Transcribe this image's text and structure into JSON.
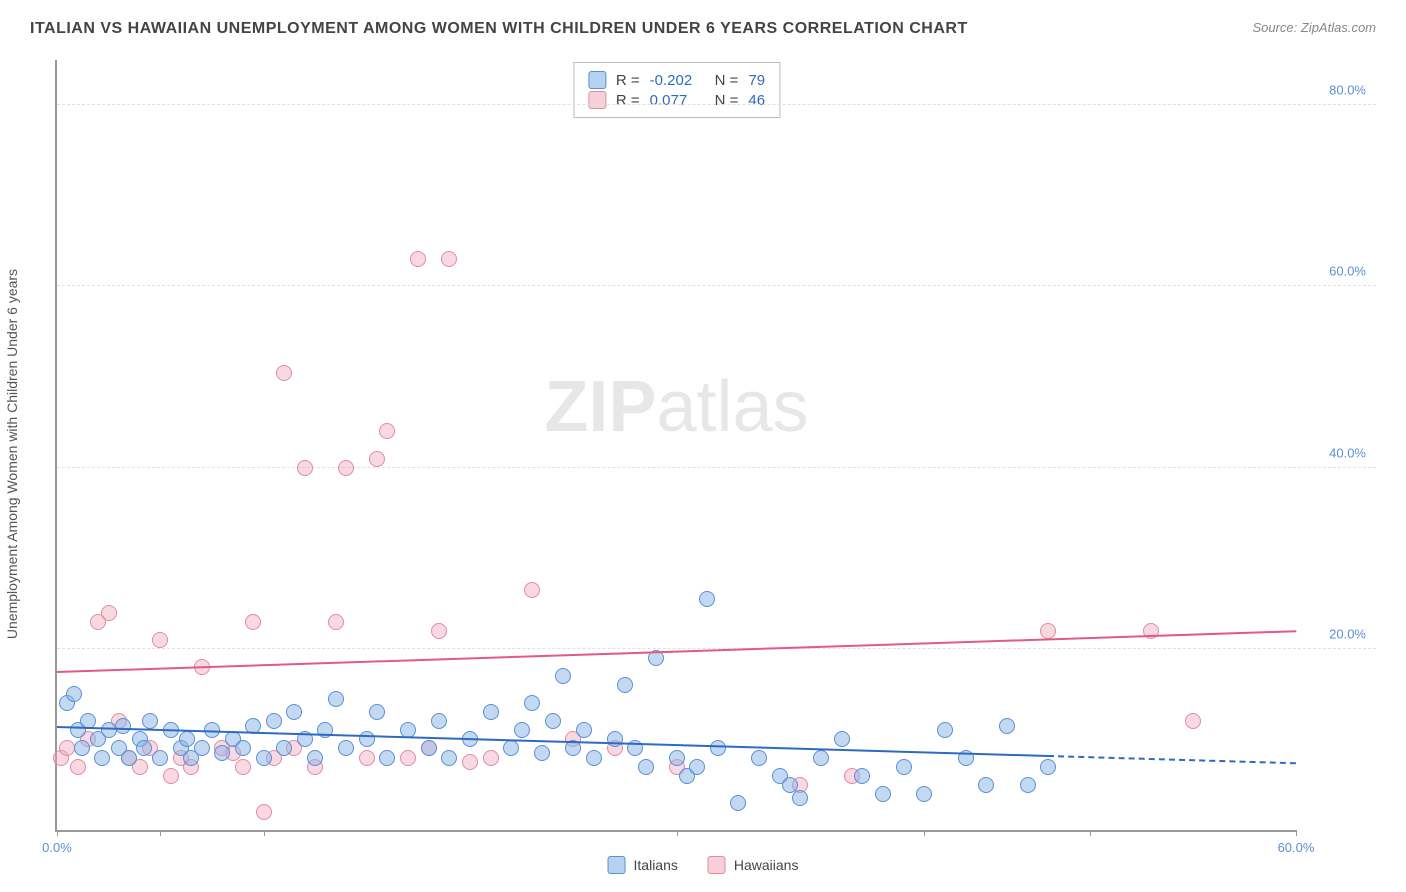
{
  "header": {
    "title": "ITALIAN VS HAWAIIAN UNEMPLOYMENT AMONG WOMEN WITH CHILDREN UNDER 6 YEARS CORRELATION CHART",
    "source": "Source: ZipAtlas.com"
  },
  "watermark": {
    "bold": "ZIP",
    "thin": "atlas"
  },
  "ylabel": "Unemployment Among Women with Children Under 6 years",
  "chart": {
    "type": "scatter",
    "xlim": [
      0,
      60
    ],
    "ylim": [
      0,
      85
    ],
    "xticks": [
      0,
      5,
      10,
      30,
      42,
      50,
      60
    ],
    "xtick_labels": [
      "0.0%",
      "",
      "",
      "",
      "",
      "",
      "60.0%"
    ],
    "yticks": [
      20,
      40,
      60,
      80
    ],
    "ytick_labels": [
      "20.0%",
      "40.0%",
      "60.0%",
      "80.0%"
    ],
    "grid_color": "#e0e0e0",
    "axis_color": "#999999",
    "tick_color": "#5a8fd6",
    "marker_radius": 8
  },
  "stats": {
    "rows": [
      {
        "swatch": "blue",
        "r_label": "R =",
        "r": "-0.202",
        "n_label": "N =",
        "n": "79"
      },
      {
        "swatch": "pink",
        "r_label": "R =",
        "r": "0.077",
        "n_label": "N =",
        "n": "46"
      }
    ]
  },
  "legend": {
    "items": [
      {
        "swatch": "blue",
        "label": "Italians"
      },
      {
        "swatch": "pink",
        "label": "Hawaiians"
      }
    ]
  },
  "series": {
    "blue": {
      "color_fill": "rgba(135,180,230,0.5)",
      "color_stroke": "#5a8fd6",
      "trend": {
        "y_at_x0": 11.5,
        "y_at_x60": 7.5,
        "solid_until_x": 48,
        "color": "#2e6bc0"
      },
      "points": [
        [
          0.5,
          14
        ],
        [
          0.8,
          15
        ],
        [
          1,
          11
        ],
        [
          1.2,
          9
        ],
        [
          1.5,
          12
        ],
        [
          2,
          10
        ],
        [
          2.2,
          8
        ],
        [
          2.5,
          11
        ],
        [
          3,
          9
        ],
        [
          3.2,
          11.5
        ],
        [
          3.5,
          8
        ],
        [
          4,
          10
        ],
        [
          4.2,
          9
        ],
        [
          4.5,
          12
        ],
        [
          5,
          8
        ],
        [
          5.5,
          11
        ],
        [
          6,
          9
        ],
        [
          6.3,
          10
        ],
        [
          6.5,
          8
        ],
        [
          7,
          9
        ],
        [
          7.5,
          11
        ],
        [
          8,
          8.5
        ],
        [
          8.5,
          10
        ],
        [
          9,
          9
        ],
        [
          9.5,
          11.5
        ],
        [
          10,
          8
        ],
        [
          10.5,
          12
        ],
        [
          11,
          9
        ],
        [
          11.5,
          13
        ],
        [
          12,
          10
        ],
        [
          12.5,
          8
        ],
        [
          13,
          11
        ],
        [
          13.5,
          14.5
        ],
        [
          14,
          9
        ],
        [
          15,
          10
        ],
        [
          15.5,
          13
        ],
        [
          16,
          8
        ],
        [
          17,
          11
        ],
        [
          18,
          9
        ],
        [
          18.5,
          12
        ],
        [
          19,
          8
        ],
        [
          20,
          10
        ],
        [
          21,
          13
        ],
        [
          22,
          9
        ],
        [
          22.5,
          11
        ],
        [
          23,
          14
        ],
        [
          23.5,
          8.5
        ],
        [
          24,
          12
        ],
        [
          24.5,
          17
        ],
        [
          25,
          9
        ],
        [
          25.5,
          11
        ],
        [
          26,
          8
        ],
        [
          27,
          10
        ],
        [
          27.5,
          16
        ],
        [
          28,
          9
        ],
        [
          28.5,
          7
        ],
        [
          29,
          19
        ],
        [
          30,
          8
        ],
        [
          30.5,
          6
        ],
        [
          31,
          7
        ],
        [
          31.5,
          25.5
        ],
        [
          32,
          9
        ],
        [
          33,
          3
        ],
        [
          34,
          8
        ],
        [
          35,
          6
        ],
        [
          35.5,
          5
        ],
        [
          36,
          3.5
        ],
        [
          37,
          8
        ],
        [
          38,
          10
        ],
        [
          39,
          6
        ],
        [
          40,
          4
        ],
        [
          41,
          7
        ],
        [
          42,
          4
        ],
        [
          43,
          11
        ],
        [
          44,
          8
        ],
        [
          45,
          5
        ],
        [
          46,
          11.5
        ],
        [
          47,
          5
        ],
        [
          48,
          7
        ]
      ]
    },
    "pink": {
      "color_fill": "rgba(240,160,180,0.4)",
      "color_stroke": "#e38aa5",
      "trend": {
        "y_at_x0": 17.5,
        "y_at_x60": 22.0,
        "solid_until_x": 60,
        "color": "#e05a85"
      },
      "points": [
        [
          0.2,
          8
        ],
        [
          0.5,
          9
        ],
        [
          1,
          7
        ],
        [
          1.5,
          10
        ],
        [
          2,
          23
        ],
        [
          2.5,
          24
        ],
        [
          3,
          12
        ],
        [
          3.5,
          8
        ],
        [
          4,
          7
        ],
        [
          4.5,
          9
        ],
        [
          5,
          21
        ],
        [
          5.5,
          6
        ],
        [
          6,
          8
        ],
        [
          6.5,
          7
        ],
        [
          7,
          18
        ],
        [
          8,
          9
        ],
        [
          8.5,
          8.5
        ],
        [
          9,
          7
        ],
        [
          9.5,
          23
        ],
        [
          10,
          2
        ],
        [
          10.5,
          8
        ],
        [
          11,
          50.5
        ],
        [
          11.5,
          9
        ],
        [
          12,
          40
        ],
        [
          12.5,
          7
        ],
        [
          13.5,
          23
        ],
        [
          14,
          40
        ],
        [
          15,
          8
        ],
        [
          15.5,
          41
        ],
        [
          16,
          44
        ],
        [
          17,
          8
        ],
        [
          17.5,
          63
        ],
        [
          18,
          9
        ],
        [
          18.5,
          22
        ],
        [
          19,
          63
        ],
        [
          20,
          7.5
        ],
        [
          21,
          8
        ],
        [
          23,
          26.5
        ],
        [
          25,
          10
        ],
        [
          27,
          9
        ],
        [
          30,
          7
        ],
        [
          36,
          5
        ],
        [
          38.5,
          6
        ],
        [
          48,
          22
        ],
        [
          53,
          22
        ],
        [
          55,
          12
        ]
      ]
    }
  }
}
